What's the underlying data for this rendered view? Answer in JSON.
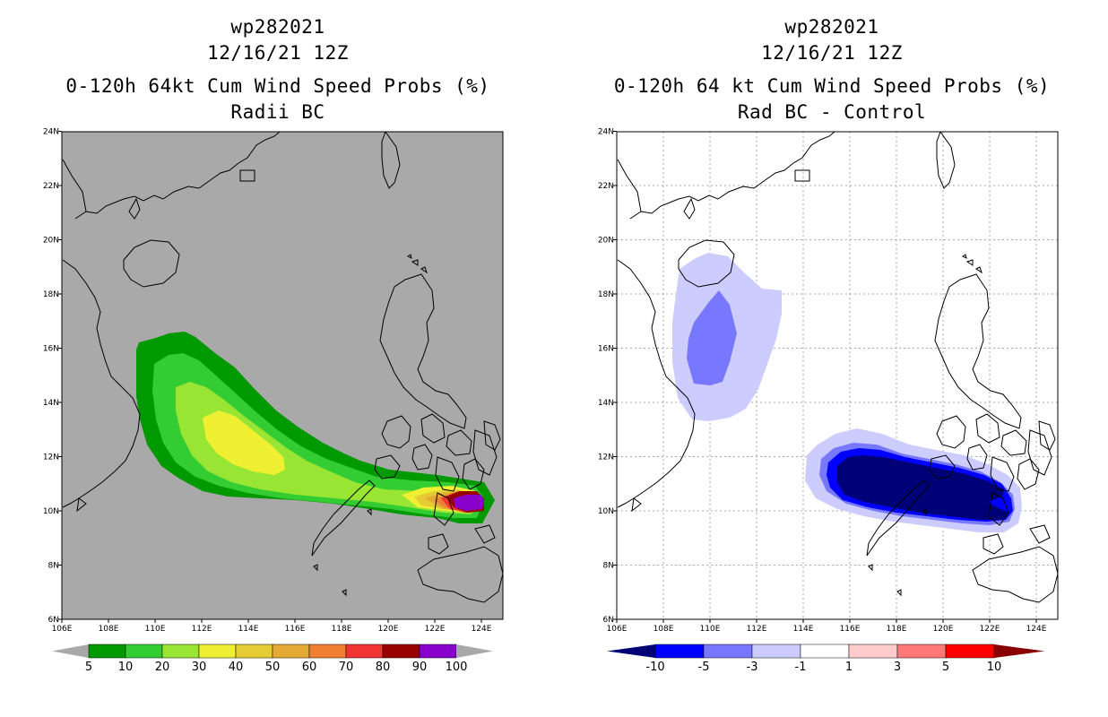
{
  "left_panel": {
    "title_line1": "wp282021",
    "title_line2": "12/16/21 12Z",
    "title_line3": "0-120h 64kt Cum Wind Speed Probs (%)",
    "title_line4": "Radii BC",
    "colorbar": {
      "colors": [
        "#009900",
        "#33cc33",
        "#99e533",
        "#f0f033",
        "#e5cc33",
        "#e5aa33",
        "#f07f33",
        "#f03333",
        "#990000",
        "#8800cc"
      ],
      "labels": [
        "5",
        "10",
        "20",
        "30",
        "40",
        "50",
        "60",
        "70",
        "80",
        "90",
        "100"
      ]
    }
  },
  "right_panel": {
    "title_line1": "wp282021",
    "title_line2": "12/16/21 12Z",
    "title_line3": "0-120h 64 kt Cum Wind Speed Probs (%)",
    "title_line4": "Rad BC - Control",
    "colorbar": {
      "colors": [
        "#0000ff",
        "#7777ff",
        "#ccccff",
        "#ffffff",
        "#ffcccc",
        "#ff7777",
        "#ff0000"
      ],
      "left_arrow": "#000077",
      "right_arrow": "#880000",
      "labels": [
        "-10",
        "-5",
        "-3",
        "-1",
        "1",
        "3",
        "5",
        "10"
      ]
    }
  },
  "lon_labels": [
    "106E",
    "108E",
    "110E",
    "112E",
    "114E",
    "116E",
    "118E",
    "120E",
    "122E",
    "124E"
  ],
  "lat_labels": [
    "6N",
    "8N",
    "10N",
    "12N",
    "14N",
    "16N",
    "18N",
    "20N",
    "22N",
    "24N"
  ]
}
